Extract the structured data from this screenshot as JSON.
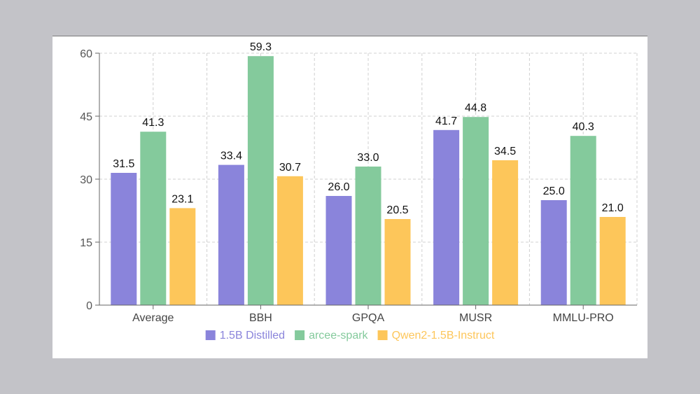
{
  "chart_data": {
    "type": "bar",
    "categories": [
      "Average",
      "BBH",
      "GPQA",
      "MUSR",
      "MMLU-PRO"
    ],
    "series": [
      {
        "name": "1.5B Distilled",
        "values": [
          31.5,
          33.4,
          26.0,
          41.7,
          25.0
        ],
        "color": "#8a84db"
      },
      {
        "name": "arcee-spark",
        "values": [
          41.3,
          59.3,
          33.0,
          44.8,
          40.3
        ],
        "color": "#84ca9c"
      },
      {
        "name": "Qwen2-1.5B-Instruct",
        "values": [
          23.1,
          30.7,
          20.5,
          34.5,
          21.0
        ],
        "color": "#fdc65a"
      }
    ],
    "y_ticks": [
      "0",
      "15",
      "30",
      "45",
      "60"
    ],
    "ylim": [
      0,
      60
    ],
    "grid": true,
    "grid_style": "dashed",
    "legend_position": "bottom-center",
    "title": "",
    "xlabel": "",
    "ylabel": ""
  }
}
